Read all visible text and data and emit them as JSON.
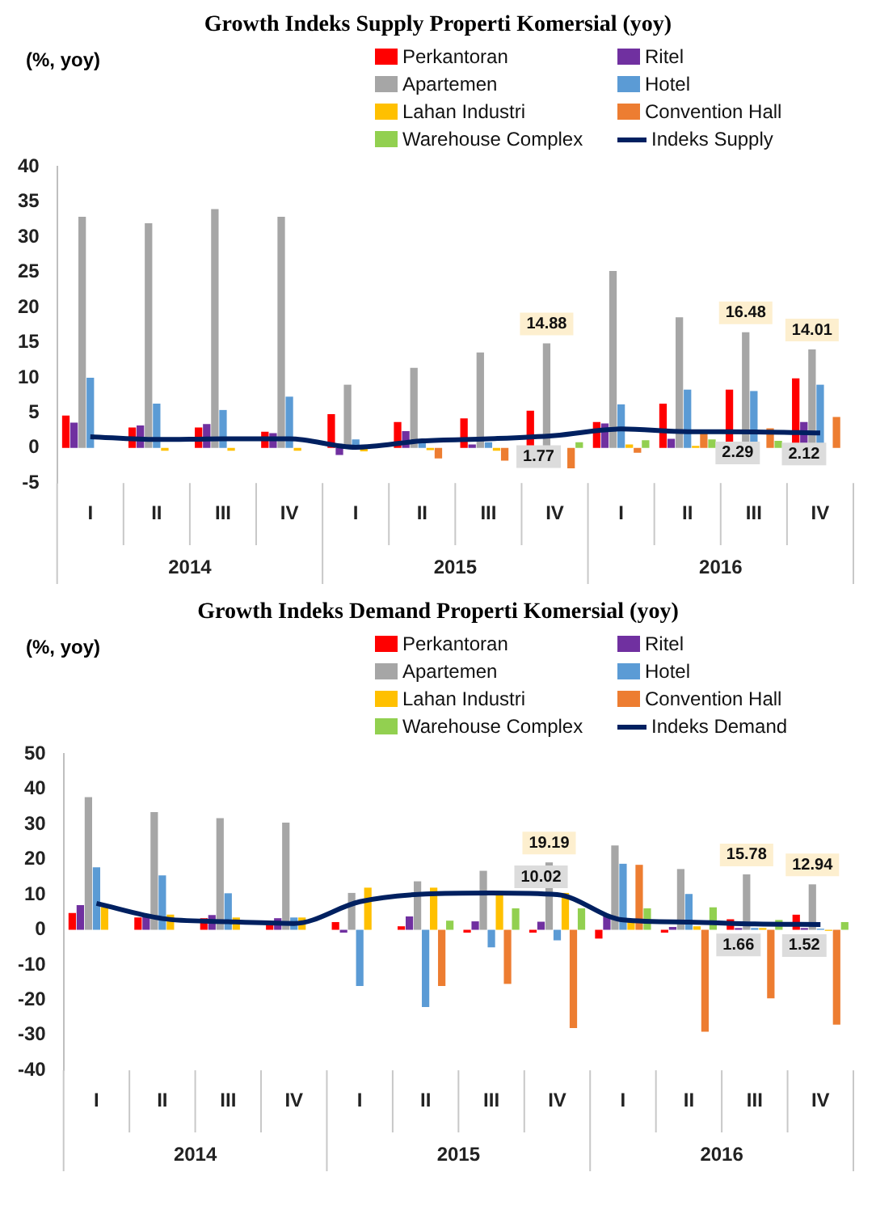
{
  "chart_data": [
    {
      "type": "bar",
      "title": "Growth Indeks Supply Properti Komersial (yoy)",
      "ylabel": "(%, yoy)",
      "categories": [
        "I",
        "II",
        "III",
        "IV",
        "I",
        "II",
        "III",
        "IV",
        "I",
        "II",
        "III",
        "IV"
      ],
      "annotations": [
        "2014",
        "2015",
        "2016"
      ],
      "series": [
        {
          "name": "Perkantoran",
          "color": "#ff0000",
          "values": [
            4.6,
            2.9,
            2.9,
            2.3,
            4.8,
            3.7,
            4.2,
            5.3,
            3.7,
            6.3,
            8.3,
            9.9
          ]
        },
        {
          "name": "Ritel",
          "color": "#7030a0",
          "values": [
            3.6,
            3.2,
            3.4,
            2.1,
            -1.0,
            2.4,
            0.5,
            0.3,
            3.5,
            1.3,
            null,
            3.7
          ]
        },
        {
          "name": "Apartemen",
          "color": "#a6a6a6",
          "values": [
            32.9,
            32.0,
            34.0,
            32.9,
            9.0,
            11.4,
            13.6,
            14.88,
            25.2,
            18.6,
            16.48,
            14.01
          ],
          "value_labels": [
            null,
            null,
            null,
            null,
            null,
            null,
            null,
            "14.88",
            null,
            null,
            "16.48",
            "14.01"
          ]
        },
        {
          "name": "Hotel",
          "color": "#5b9bd5",
          "values": [
            10.0,
            6.3,
            5.4,
            7.3,
            1.2,
            1.2,
            0.8,
            0.3,
            6.2,
            8.3,
            8.1,
            9.0
          ]
        },
        {
          "name": "Lahan Industri",
          "color": "#ffc000",
          "values": [
            null,
            -0.4,
            -0.4,
            -0.4,
            -0.5,
            -0.3,
            -0.4,
            null,
            0.5,
            0.3,
            null,
            null
          ]
        },
        {
          "name": "Convention Hall",
          "color": "#ed7d31",
          "values": [
            null,
            null,
            null,
            null,
            null,
            -1.5,
            -1.8,
            -2.9,
            -0.7,
            2.4,
            2.8,
            4.4
          ]
        },
        {
          "name": "Warehouse Complex",
          "color": "#92d050",
          "values": [
            null,
            null,
            null,
            null,
            null,
            null,
            null,
            0.8,
            1.1,
            1.2,
            1.0,
            null
          ]
        },
        {
          "name": "Indeks Supply",
          "type": "line",
          "color": "#002060",
          "values": [
            1.6,
            1.2,
            1.3,
            1.3,
            0.1,
            1.0,
            1.3,
            1.77,
            2.7,
            2.3,
            2.29,
            2.12
          ],
          "value_labels": [
            null,
            null,
            null,
            null,
            null,
            null,
            null,
            "1.77",
            null,
            null,
            "2.29",
            "2.12"
          ]
        }
      ],
      "ylim": [
        -5,
        40
      ],
      "yticks": [
        -5,
        0,
        5,
        10,
        15,
        20,
        25,
        30,
        35,
        40
      ],
      "grid": false,
      "legend": "top right",
      "marker": "none"
    },
    {
      "type": "bar",
      "title": "Growth Indeks Demand Properti Komersial (yoy)",
      "ylabel": "(%, yoy)",
      "categories": [
        "I",
        "II",
        "III",
        "IV",
        "I",
        "II",
        "III",
        "IV",
        "I",
        "II",
        "III",
        "IV"
      ],
      "annotations": [
        "2014",
        "2015",
        "2016"
      ],
      "series": [
        {
          "name": "Perkantoran",
          "color": "#ff0000",
          "values": [
            4.8,
            3.5,
            3.3,
            2.2,
            2.2,
            1.0,
            -0.8,
            -0.8,
            -2.5,
            -0.8,
            3.0,
            4.3
          ]
        },
        {
          "name": "Ritel",
          "color": "#7030a0",
          "values": [
            7.0,
            3.8,
            4.2,
            3.3,
            -0.8,
            3.8,
            2.4,
            2.3,
            4.1,
            0.8,
            0.5,
            0.5
          ]
        },
        {
          "name": "Apartemen",
          "color": "#a6a6a6",
          "values": [
            37.8,
            33.5,
            31.8,
            30.5,
            10.5,
            13.8,
            16.8,
            19.19,
            24.0,
            17.3,
            15.78,
            12.94
          ],
          "value_labels": [
            null,
            null,
            null,
            null,
            null,
            null,
            null,
            "19.19",
            null,
            null,
            "15.78",
            "12.94"
          ]
        },
        {
          "name": "Hotel",
          "color": "#5b9bd5",
          "values": [
            17.8,
            15.5,
            10.4,
            3.5,
            -16.0,
            -22.0,
            -5.0,
            -3.0,
            18.8,
            10.2,
            0.5,
            0.3
          ]
        },
        {
          "name": "Lahan Industri",
          "color": "#ffc000",
          "values": [
            6.5,
            4.3,
            3.5,
            3.5,
            12.0,
            12.0,
            11.0,
            10.5,
            2.5,
            1.0,
            0.5,
            -0.3
          ]
        },
        {
          "name": "Convention Hall",
          "color": "#ed7d31",
          "values": [
            null,
            null,
            null,
            null,
            null,
            -16.0,
            -15.4,
            -28.0,
            18.5,
            -29.0,
            -19.5,
            -27.0
          ]
        },
        {
          "name": "Warehouse Complex",
          "color": "#92d050",
          "values": [
            null,
            null,
            null,
            null,
            null,
            2.6,
            6.1,
            6.1,
            6.1,
            6.4,
            2.8,
            2.2
          ]
        },
        {
          "name": "Indeks Demand",
          "type": "line",
          "color": "#002060",
          "values": [
            7.5,
            3.2,
            2.3,
            1.8,
            8.0,
            10.2,
            10.5,
            10.02,
            2.8,
            2.2,
            1.66,
            1.52
          ],
          "value_labels": [
            null,
            null,
            null,
            null,
            null,
            null,
            null,
            "10.02",
            null,
            null,
            "1.66",
            "1.52"
          ]
        }
      ],
      "ylim": [
        -40,
        50
      ],
      "yticks": [
        -40,
        -30,
        -20,
        -10,
        0,
        10,
        20,
        30,
        40,
        50
      ],
      "grid": false,
      "legend": "top right",
      "marker": "none"
    }
  ]
}
